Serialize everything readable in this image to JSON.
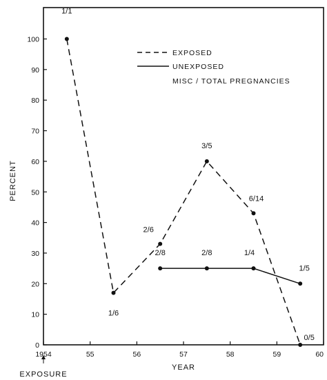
{
  "chart_data": {
    "type": "line",
    "xlabel": "YEAR",
    "ylabel": "PERCENT",
    "annotation": "EXPOSURE",
    "xlim": [
      1954,
      1960
    ],
    "ylim": [
      0,
      110
    ],
    "x_ticks": [
      1954,
      1955,
      1956,
      1957,
      1958,
      1959,
      1960
    ],
    "x_tick_labels": [
      "1954",
      "55",
      "56",
      "57",
      "58",
      "59",
      "60"
    ],
    "y_ticks": [
      0,
      10,
      20,
      30,
      40,
      50,
      60,
      70,
      80,
      90,
      100
    ],
    "y_tick_labels": [
      "0",
      "10",
      "20",
      "30",
      "40",
      "50",
      "60",
      "70",
      "80",
      "90",
      "100"
    ],
    "grid": false,
    "legend": {
      "placement": "top-right",
      "entries": [
        {
          "label": "EXPOSED",
          "style": "dashed"
        },
        {
          "label": "UNEXPOSED",
          "style": "solid"
        }
      ],
      "note": "MISC / TOTAL PREGNANCIES"
    },
    "series": [
      {
        "name": "EXPOSED",
        "style": "dashed",
        "x": [
          1954.5,
          1955.5,
          1956.5,
          1957.5,
          1958.5,
          1959.5
        ],
        "values": [
          100,
          17,
          33,
          60,
          43,
          0
        ],
        "labels": [
          "1/1",
          "1/6",
          "2/6",
          "3/5",
          "6/14",
          "0/5"
        ]
      },
      {
        "name": "UNEXPOSED",
        "style": "solid",
        "x": [
          1956.5,
          1957.5,
          1958.5,
          1959.5
        ],
        "values": [
          25,
          25,
          25,
          20
        ],
        "labels": [
          "2/8",
          "2/8",
          "1/4",
          "1/5"
        ]
      }
    ]
  }
}
